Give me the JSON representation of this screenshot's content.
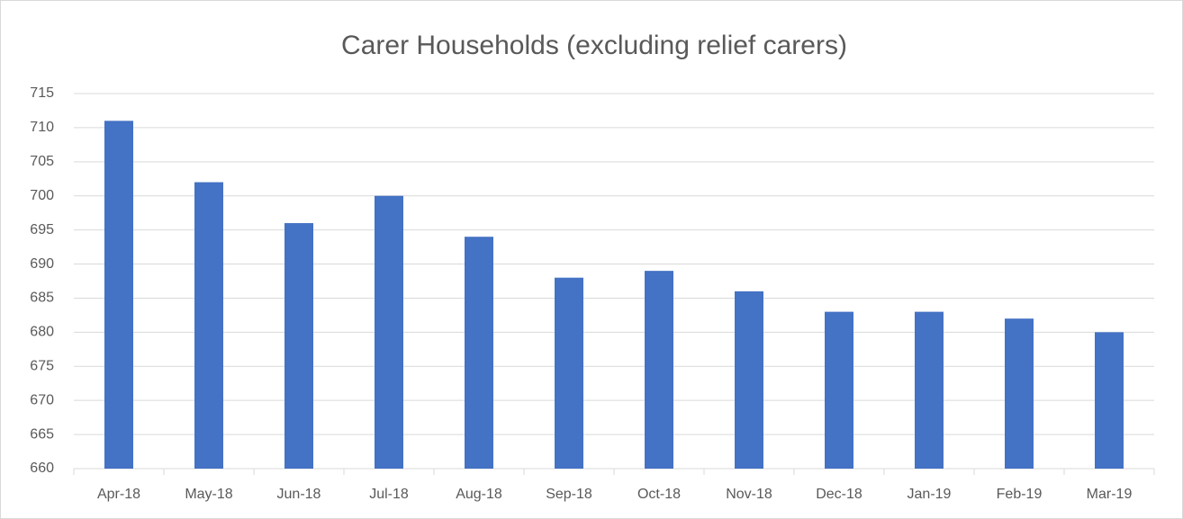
{
  "chart_data": {
    "type": "bar",
    "title": "Carer Households (excluding relief carers)",
    "categories": [
      "Apr-18",
      "May-18",
      "Jun-18",
      "Jul-18",
      "Aug-18",
      "Sep-18",
      "Oct-18",
      "Nov-18",
      "Dec-18",
      "Jan-19",
      "Feb-19",
      "Mar-19"
    ],
    "values": [
      711,
      702,
      696,
      700,
      694,
      688,
      689,
      686,
      683,
      683,
      682,
      680
    ],
    "color": "#4472c4",
    "ylim": [
      660,
      715
    ],
    "yticks": [
      660,
      665,
      670,
      675,
      680,
      685,
      690,
      695,
      700,
      705,
      710,
      715
    ],
    "grid": true
  }
}
